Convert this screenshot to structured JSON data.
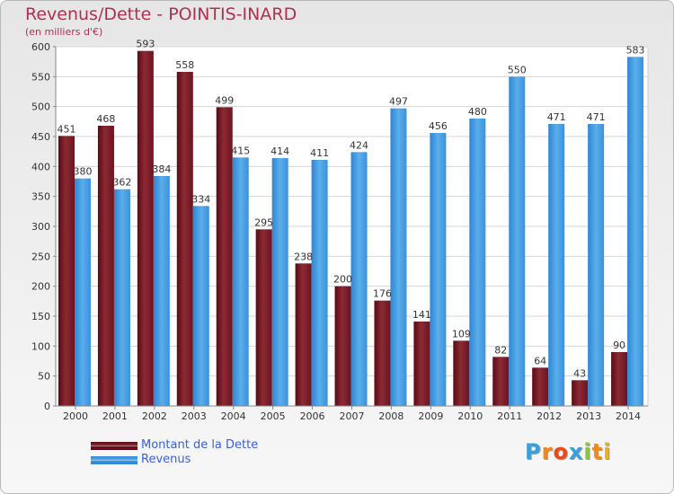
{
  "header": {
    "title": "Revenus/Dette - POINTIS-INARD",
    "subtitle": "(en milliers d'€)"
  },
  "colors": {
    "title": "#b03050",
    "debt": "#7a1520",
    "revenue": "#4a9be0",
    "legend_text": "#3a5fe0"
  },
  "chart_data": {
    "type": "bar",
    "categories": [
      "2000",
      "2001",
      "2002",
      "2003",
      "2004",
      "2005",
      "2006",
      "2007",
      "2008",
      "2009",
      "2010",
      "2011",
      "2012",
      "2013",
      "2014"
    ],
    "series": [
      {
        "name": "Montant de la Dette",
        "values": [
          451,
          468,
          593,
          558,
          499,
          295,
          238,
          200,
          176,
          141,
          109,
          82,
          64,
          43,
          90
        ]
      },
      {
        "name": "Revenus",
        "values": [
          380,
          362,
          384,
          334,
          415,
          414,
          411,
          424,
          497,
          456,
          480,
          550,
          471,
          471,
          583
        ]
      }
    ],
    "title": "Revenus/Dette - POINTIS-INARD",
    "ylabel": "(en milliers d'€)",
    "ylim": [
      0,
      600
    ],
    "yticks": [
      0,
      50,
      100,
      150,
      200,
      250,
      300,
      350,
      400,
      450,
      500,
      550,
      600
    ],
    "grid": true,
    "legend_position": "bottom-left"
  },
  "legend": {
    "items": [
      {
        "label": "Montant de la Dette"
      },
      {
        "label": "Revenus"
      }
    ]
  },
  "logo": {
    "letters": [
      "P",
      "r",
      "o",
      "x",
      "i",
      "t",
      "i"
    ],
    "colors": [
      "#3aa0d8",
      "#f08a1c",
      "#e84a1a",
      "#3aa0d8",
      "#8cc43c",
      "#f08a1c",
      "#e8b21c"
    ]
  }
}
